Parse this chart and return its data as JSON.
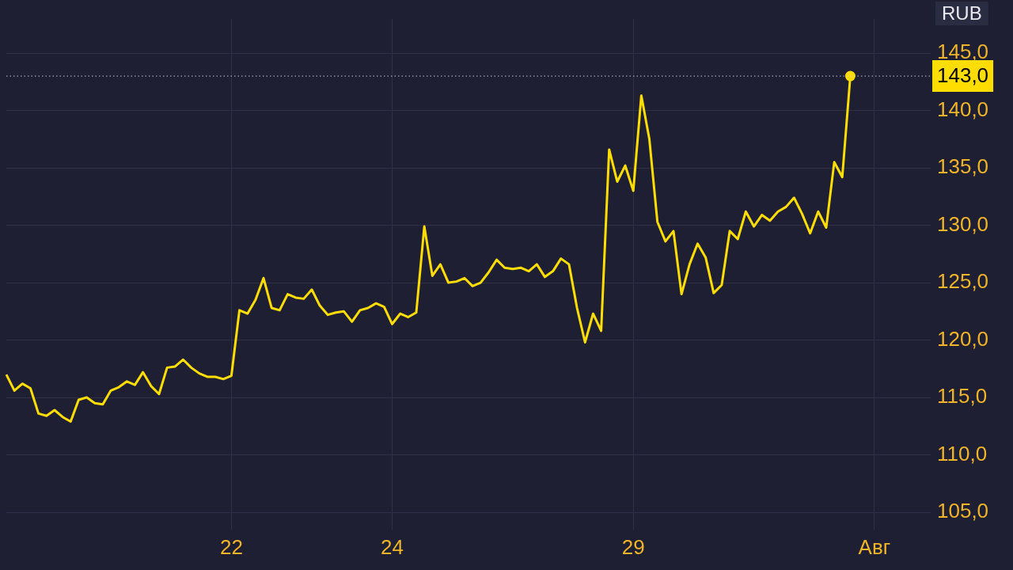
{
  "chart_data": {
    "type": "line",
    "ylabel": "RUB",
    "categories": [
      null,
      null,
      null,
      null,
      null,
      null,
      null,
      null,
      null,
      null,
      null,
      null,
      null,
      null,
      null,
      null,
      null,
      null,
      null,
      null,
      null,
      null,
      null,
      null,
      null,
      null,
      null,
      null,
      "22",
      null,
      null,
      null,
      null,
      null,
      null,
      null,
      null,
      null,
      null,
      null,
      null,
      null,
      null,
      null,
      null,
      null,
      null,
      null,
      "24",
      null,
      null,
      null,
      null,
      null,
      null,
      null,
      null,
      null,
      null,
      null,
      null,
      null,
      null,
      null,
      null,
      null,
      null,
      null,
      null,
      null,
      null,
      null,
      null,
      null,
      null,
      null,
      null,
      null,
      "29",
      null,
      null,
      null,
      null,
      null,
      null,
      null,
      null,
      null,
      null,
      null,
      null,
      null,
      null,
      null,
      null,
      null,
      null,
      null,
      null,
      null,
      null,
      null,
      null,
      null,
      null,
      null,
      null,
      null,
      "Авг",
      null,
      null,
      null,
      null,
      null,
      null,
      null
    ],
    "series": [
      {
        "color": "#ffdd00",
        "values": [
          117.0,
          115.6,
          116.2,
          115.8,
          113.6,
          113.4,
          113.9,
          113.3,
          112.9,
          114.8,
          115.0,
          114.5,
          114.4,
          115.6,
          115.9,
          116.4,
          116.1,
          117.2,
          116.0,
          115.3,
          117.6,
          117.7,
          118.3,
          117.6,
          117.1,
          116.8,
          116.8,
          116.6,
          116.9,
          122.6,
          122.3,
          123.5,
          125.4,
          122.8,
          122.6,
          124.0,
          123.7,
          123.6,
          124.4,
          123.0,
          122.2,
          122.4,
          122.5,
          121.6,
          122.6,
          122.8,
          123.2,
          122.9,
          121.4,
          122.3,
          122.0,
          122.4,
          129.9,
          125.6,
          126.6,
          125.0,
          125.1,
          125.4,
          124.7,
          125.0,
          125.9,
          127.0,
          126.3,
          126.2,
          126.3,
          126.0,
          126.6,
          125.5,
          126.0,
          127.1,
          126.6,
          122.8,
          119.8,
          122.3,
          120.8,
          136.6,
          133.8,
          135.2,
          133.0,
          141.3,
          137.5,
          130.3,
          128.6,
          129.5,
          124.0,
          126.6,
          128.4,
          127.2,
          124.1,
          124.8,
          129.5,
          128.8,
          131.2,
          129.9,
          130.9,
          130.4,
          131.2,
          131.6,
          132.4,
          131.0,
          129.3,
          131.2,
          129.8,
          135.5,
          134.2,
          143.0,
          null,
          null,
          null,
          null,
          null,
          null,
          null,
          null,
          null,
          null
        ]
      }
    ],
    "ylim": [
      103.5,
      148
    ],
    "yticks": [
      {
        "value": 105,
        "label": "105,0"
      },
      {
        "value": 110,
        "label": "110,0"
      },
      {
        "value": 115,
        "label": "115,0"
      },
      {
        "value": 120,
        "label": "120,0"
      },
      {
        "value": 125,
        "label": "125,0"
      },
      {
        "value": 130,
        "label": "130,0"
      },
      {
        "value": 135,
        "label": "135,0"
      },
      {
        "value": 140,
        "label": "140,0"
      },
      {
        "value": 145,
        "label": "145,0"
      }
    ],
    "ref_lines": [
      {
        "axis": "y",
        "value": 143,
        "label": "143,0",
        "color": "#c8c8d0",
        "line_style": "dotted"
      }
    ],
    "grid": true,
    "legend": false
  }
}
